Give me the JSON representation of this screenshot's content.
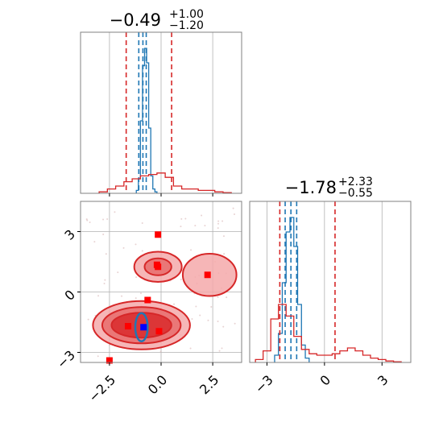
{
  "chart_data": [
    {
      "type": "histogram",
      "panel": "top-left",
      "title": {
        "median": "−0.49",
        "plus": "+1.00",
        "minus": "−1.20"
      },
      "xlim": [
        -3.9,
        3.9
      ],
      "xticks": [
        -2.5,
        0.0,
        2.5
      ],
      "series": [
        {
          "color": "#1f77b4",
          "bin_edges": [
            -1.2,
            -1.1,
            -1.0,
            -0.9,
            -0.8,
            -0.7,
            -0.6,
            -0.5,
            -0.4,
            -0.3,
            -0.2
          ],
          "counts": [
            0.02,
            0.1,
            0.5,
            0.88,
            1.0,
            0.9,
            0.45,
            0.12,
            0.03,
            0.01
          ],
          "quantile_lines": [
            -1.08,
            -0.88,
            -0.72
          ]
        },
        {
          "color": "#d62728",
          "bin_edges": [
            -3.0,
            -2.6,
            -2.2,
            -1.8,
            -1.4,
            -1.0,
            -0.6,
            -0.2,
            0.2,
            0.6,
            1.0,
            1.4,
            1.8,
            2.2,
            2.6,
            3.0,
            3.4
          ],
          "counts": [
            0.01,
            0.03,
            0.05,
            0.08,
            0.1,
            0.12,
            0.13,
            0.14,
            0.11,
            0.05,
            0.03,
            0.03,
            0.02,
            0.02,
            0.01,
            0.005
          ],
          "quantile_lines": [
            -1.69,
            0.51
          ]
        }
      ]
    },
    {
      "type": "contour",
      "panel": "bottom-left",
      "xlim": [
        -3.9,
        3.9
      ],
      "ylim": [
        -3.5,
        4.5
      ],
      "xticks": [
        -2.5,
        0.0,
        2.5
      ],
      "yticks": [
        -3,
        0,
        3
      ],
      "red_contours": [
        {
          "cx": -0.95,
          "cy": -1.65,
          "rx": 2.35,
          "ry": 1.2,
          "level": 1
        },
        {
          "cx": -0.95,
          "cy": -1.65,
          "rx": 1.9,
          "ry": 0.9,
          "level": 2
        },
        {
          "cx": -0.95,
          "cy": -1.65,
          "rx": 1.45,
          "ry": 0.62,
          "level": 3
        },
        {
          "cx": -0.15,
          "cy": 1.25,
          "rx": 1.15,
          "ry": 0.75,
          "level": 1
        },
        {
          "cx": -0.15,
          "cy": 1.25,
          "rx": 0.65,
          "ry": 0.42,
          "level": 2
        },
        {
          "cx": 2.35,
          "cy": 0.85,
          "rx": 1.3,
          "ry": 1.05,
          "level": 1
        }
      ],
      "blue_contour": {
        "cx": -0.95,
        "cy": -1.75,
        "rx": 0.3,
        "ry": 0.7
      },
      "red_points": [
        {
          "x": -0.15,
          "y": 2.85
        },
        {
          "x": -0.2,
          "y": 1.35
        },
        {
          "x": -0.15,
          "y": 1.25
        },
        {
          "x": 2.25,
          "y": 0.85
        },
        {
          "x": -0.65,
          "y": -0.4
        },
        {
          "x": -1.6,
          "y": -1.7
        },
        {
          "x": -0.1,
          "y": -1.95
        },
        {
          "x": -2.5,
          "y": -3.4
        }
      ],
      "blue_point": {
        "x": -0.85,
        "y": -1.75
      }
    },
    {
      "type": "histogram",
      "panel": "bottom-right",
      "title": {
        "median": "−1.78",
        "plus": "+2.33",
        "minus": "−0.55"
      },
      "xlim": [
        -3.9,
        4.5
      ],
      "xticks": [
        -3,
        0,
        3
      ],
      "series": [
        {
          "color": "#1f77b4",
          "bin_edges": [
            -2.6,
            -2.4,
            -2.2,
            -2.0,
            -1.8,
            -1.6,
            -1.4,
            -1.2,
            -1.0,
            -0.8
          ],
          "counts": [
            0.05,
            0.2,
            0.55,
            0.9,
            1.0,
            0.8,
            0.4,
            0.12,
            0.03
          ],
          "quantile_lines": [
            -2.05,
            -1.75,
            -1.45
          ]
        },
        {
          "color": "#d62728",
          "bin_edges": [
            -3.6,
            -3.2,
            -2.8,
            -2.4,
            -2.0,
            -1.6,
            -1.2,
            -0.8,
            -0.4,
            0.0,
            0.4,
            0.8,
            1.2,
            1.6,
            2.0,
            2.4,
            2.8,
            3.2,
            3.6,
            4.0
          ],
          "counts": [
            0.02,
            0.08,
            0.3,
            0.4,
            0.32,
            0.18,
            0.09,
            0.06,
            0.05,
            0.05,
            0.06,
            0.08,
            0.1,
            0.08,
            0.05,
            0.03,
            0.02,
            0.01,
            0.005
          ],
          "quantile_lines": [
            -2.33,
            0.55
          ]
        }
      ]
    }
  ]
}
